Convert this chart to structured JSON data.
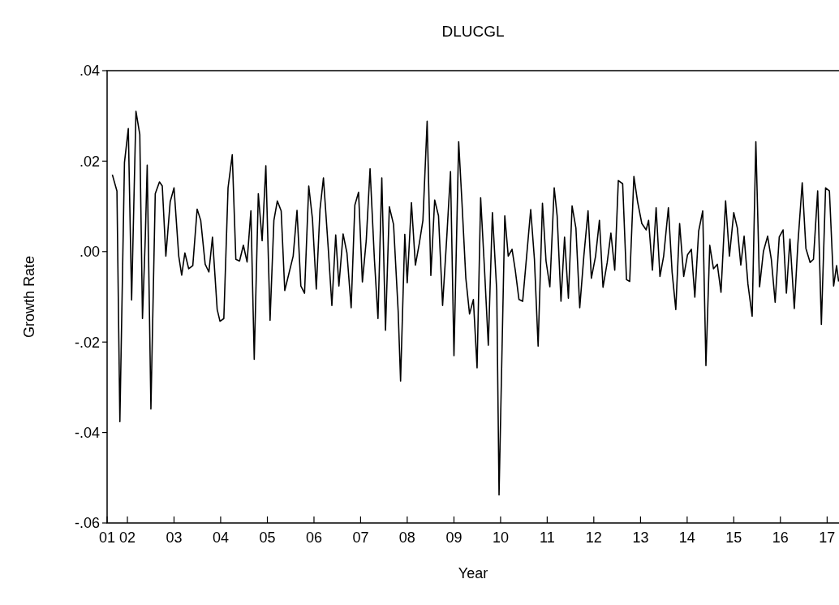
{
  "chart_data": {
    "type": "line",
    "title": "DLUCGL",
    "xlabel": "Year",
    "ylabel": "Growth Rate",
    "x": [
      "2001-09-05",
      "2001-10-11",
      "2001-11-03",
      "2001-12-09",
      "2002-01-08",
      "2002-02-03",
      "2002-03-09",
      "2002-04-08",
      "2002-04-29",
      "2002-05-21",
      "2002-06-05",
      "2002-07-04",
      "2002-08-07",
      "2002-09-09",
      "2002-10-01",
      "2002-10-29",
      "2002-12-02",
      "2003-01-01",
      "2003-02-07",
      "2003-03-02",
      "2003-03-27",
      "2003-04-26",
      "2003-05-28",
      "2003-07-01",
      "2003-07-29",
      "2003-09-02",
      "2003-10-01",
      "2003-10-29",
      "2003-12-05",
      "2003-12-27",
      "2004-01-26",
      "2004-02-28",
      "2004-04-01",
      "2004-04-29",
      "2004-05-28",
      "2004-06-27",
      "2004-07-26",
      "2004-08-25",
      "2004-09-20",
      "2004-10-22",
      "2004-11-21",
      "2004-12-20",
      "2005-01-22",
      "2005-02-21",
      "2005-03-20",
      "2005-04-19",
      "2005-05-17",
      "2005-07-22",
      "2005-08-21",
      "2005-09-20",
      "2005-10-19",
      "2005-11-21",
      "2005-12-20",
      "2006-01-19",
      "2006-02-17",
      "2006-03-16",
      "2006-04-22",
      "2006-05-21",
      "2006-06-20",
      "2006-07-15",
      "2006-08-17",
      "2006-09-16",
      "2006-10-19",
      "2006-11-17",
      "2006-12-16",
      "2007-01-15",
      "2007-02-14",
      "2007-03-16",
      "2007-04-19",
      "2007-05-17",
      "2007-06-16",
      "2007-07-15",
      "2007-08-14",
      "2007-09-16",
      "2007-10-22",
      "2007-11-10",
      "2007-12-13",
      "2008-01-01",
      "2008-02-03",
      "2008-03-05",
      "2008-04-04",
      "2008-05-03",
      "2008-06-05",
      "2008-07-04",
      "2008-08-03",
      "2008-09-02",
      "2008-10-04",
      "2008-11-07",
      "2008-12-05",
      "2009-01-01",
      "2009-02-07",
      "2009-03-05",
      "2009-04-04",
      "2009-05-03",
      "2009-06-02",
      "2009-07-01",
      "2009-07-29",
      "2009-08-28",
      "2009-09-27",
      "2009-10-29",
      "2009-12-02",
      "2009-12-20",
      "2010-02-03",
      "2010-03-02",
      "2010-04-01",
      "2010-04-26",
      "2010-05-25",
      "2010-06-23",
      "2010-08-25",
      "2010-09-23",
      "2010-10-22",
      "2010-11-25",
      "2010-12-23",
      "2011-01-22",
      "2011-02-25",
      "2011-03-20",
      "2011-04-19",
      "2011-05-17",
      "2011-06-16",
      "2011-07-15",
      "2011-08-14",
      "2011-09-13",
      "2011-10-15",
      "2011-11-17",
      "2011-12-13",
      "2012-01-15",
      "2012-02-14",
      "2012-03-13",
      "2012-04-15",
      "2012-05-14",
      "2012-06-13",
      "2012-07-11",
      "2012-08-14",
      "2012-09-13",
      "2012-10-08",
      "2012-11-10",
      "2012-12-09",
      "2013-01-11",
      "2013-02-14",
      "2013-03-05",
      "2013-04-04",
      "2013-05-03",
      "2013-06-02",
      "2013-07-01",
      "2013-08-07",
      "2013-09-05",
      "2013-10-04",
      "2013-11-03",
      "2013-12-05",
      "2014-01-04",
      "2014-02-03",
      "2014-03-02",
      "2014-04-01",
      "2014-05-03",
      "2014-05-28",
      "2014-06-27",
      "2014-07-26",
      "2014-08-25",
      "2014-09-23",
      "2014-10-29",
      "2014-11-28",
      "2015-01-01",
      "2015-01-29",
      "2015-02-25",
      "2015-03-23",
      "2015-04-22",
      "2015-05-25",
      "2015-06-23",
      "2015-07-22",
      "2015-08-21",
      "2015-09-23",
      "2015-10-22",
      "2015-11-21",
      "2015-12-23",
      "2016-01-22",
      "2016-02-17",
      "2016-03-16",
      "2016-04-19",
      "2016-05-17",
      "2016-06-20",
      "2016-07-19",
      "2016-08-21",
      "2016-09-16",
      "2016-10-19",
      "2016-11-17",
      "2016-12-20",
      "2017-01-19",
      "2017-02-21",
      "2017-03-16",
      "2017-04-01"
    ],
    "series": [
      {
        "color": "#000000",
        "values": [
          0.017,
          0.0134,
          -0.0376,
          0.0197,
          0.0272,
          -0.0107,
          0.031,
          0.0259,
          -0.0148,
          0.0031,
          0.0191,
          -0.0348,
          0.0128,
          0.0154,
          0.0145,
          -0.001,
          0.011,
          0.0141,
          -0.001,
          -0.0052,
          -0.0003,
          -0.0038,
          -0.0031,
          0.0094,
          0.0069,
          -0.0028,
          -0.0045,
          0.0032,
          -0.0128,
          -0.0154,
          -0.0148,
          0.0141,
          0.0214,
          -0.0017,
          -0.0021,
          0.0014,
          -0.0023,
          0.009,
          -0.0238,
          0.0128,
          0.0024,
          0.019,
          -0.0152,
          0.0069,
          0.0112,
          0.009,
          -0.0086,
          -0.001,
          0.0091,
          -0.0076,
          -0.0092,
          0.0145,
          0.0072,
          -0.0083,
          0.0093,
          0.0163,
          0.001,
          -0.0119,
          0.0037,
          -0.0076,
          0.0039,
          -0.0003,
          -0.0124,
          0.0103,
          0.0131,
          -0.0067,
          0.0024,
          0.0183,
          -0.0017,
          -0.0148,
          0.0163,
          -0.0174,
          0.0099,
          0.006,
          -0.0131,
          -0.0286,
          0.0038,
          -0.0069,
          0.0108,
          -0.003,
          0.0017,
          0.0069,
          0.0288,
          -0.0053,
          0.0114,
          0.0079,
          -0.0119,
          0.0038,
          0.0177,
          -0.023,
          0.0243,
          0.0107,
          -0.0059,
          -0.0138,
          -0.0106,
          -0.0257,
          0.0119,
          -0.0038,
          -0.0207,
          0.0086,
          -0.0086,
          -0.0538,
          0.0079,
          -0.001,
          0.0005,
          -0.0041,
          -0.0106,
          -0.011,
          0.0093,
          -0.0017,
          -0.0209,
          0.0107,
          -0.0021,
          -0.0078,
          0.0141,
          0.0079,
          -0.011,
          0.0032,
          -0.0103,
          0.0101,
          0.0052,
          -0.0124,
          -0.001,
          0.009,
          -0.0059,
          -0.001,
          0.0069,
          -0.0079,
          -0.0024,
          0.0041,
          -0.0041,
          0.0157,
          0.015,
          -0.0062,
          -0.0066,
          0.0166,
          0.011,
          0.0062,
          0.0048,
          0.0069,
          -0.0041,
          0.0097,
          -0.0055,
          -0.001,
          0.0097,
          -0.0045,
          -0.0128,
          0.0062,
          -0.0055,
          -0.0007,
          0.0005,
          -0.0101,
          0.0045,
          0.009,
          -0.0252,
          0.0014,
          -0.0038,
          -0.0028,
          -0.009,
          0.0112,
          -0.001,
          0.0086,
          0.0052,
          -0.003,
          0.0034,
          -0.0072,
          -0.0143,
          0.0243,
          -0.0078,
          0.0,
          0.0034,
          -0.0017,
          -0.0112,
          0.0032,
          0.0048,
          -0.0092,
          0.0028,
          -0.0126,
          0.0017,
          0.0152,
          0.0007,
          -0.0024,
          -0.0017,
          0.0134,
          -0.0161,
          0.0141,
          0.0134,
          -0.0076,
          -0.0031,
          -0.0066
        ]
      }
    ],
    "xlim": [
      "2001-07-26",
      "2017-04-04"
    ],
    "xticks": [
      {
        "value": "2001-07-26",
        "label": "01"
      },
      {
        "value": "2002",
        "label": "02"
      },
      {
        "value": "2003",
        "label": "03"
      },
      {
        "value": "2004",
        "label": "04"
      },
      {
        "value": "2005",
        "label": "05"
      },
      {
        "value": "2006",
        "label": "06"
      },
      {
        "value": "2007",
        "label": "07"
      },
      {
        "value": "2008",
        "label": "08"
      },
      {
        "value": "2009",
        "label": "09"
      },
      {
        "value": "2010",
        "label": "10"
      },
      {
        "value": "2011",
        "label": "11"
      },
      {
        "value": "2012",
        "label": "12"
      },
      {
        "value": "2013",
        "label": "13"
      },
      {
        "value": "2014",
        "label": "14"
      },
      {
        "value": "2015",
        "label": "15"
      },
      {
        "value": "2016",
        "label": "16"
      },
      {
        "value": "2017",
        "label": "17"
      }
    ],
    "ylim": [
      -0.06,
      0.04
    ],
    "yticks": [
      {
        "value": -0.06,
        "label": "-.06"
      },
      {
        "value": -0.04,
        "label": "-.04"
      },
      {
        "value": -0.02,
        "label": "-.02"
      },
      {
        "value": 0,
        "label": ".00"
      },
      {
        "value": 0.02,
        "label": ".02"
      },
      {
        "value": 0.04,
        "label": ".04"
      }
    ],
    "grid": false,
    "line_style": "solid",
    "marker": "none"
  }
}
